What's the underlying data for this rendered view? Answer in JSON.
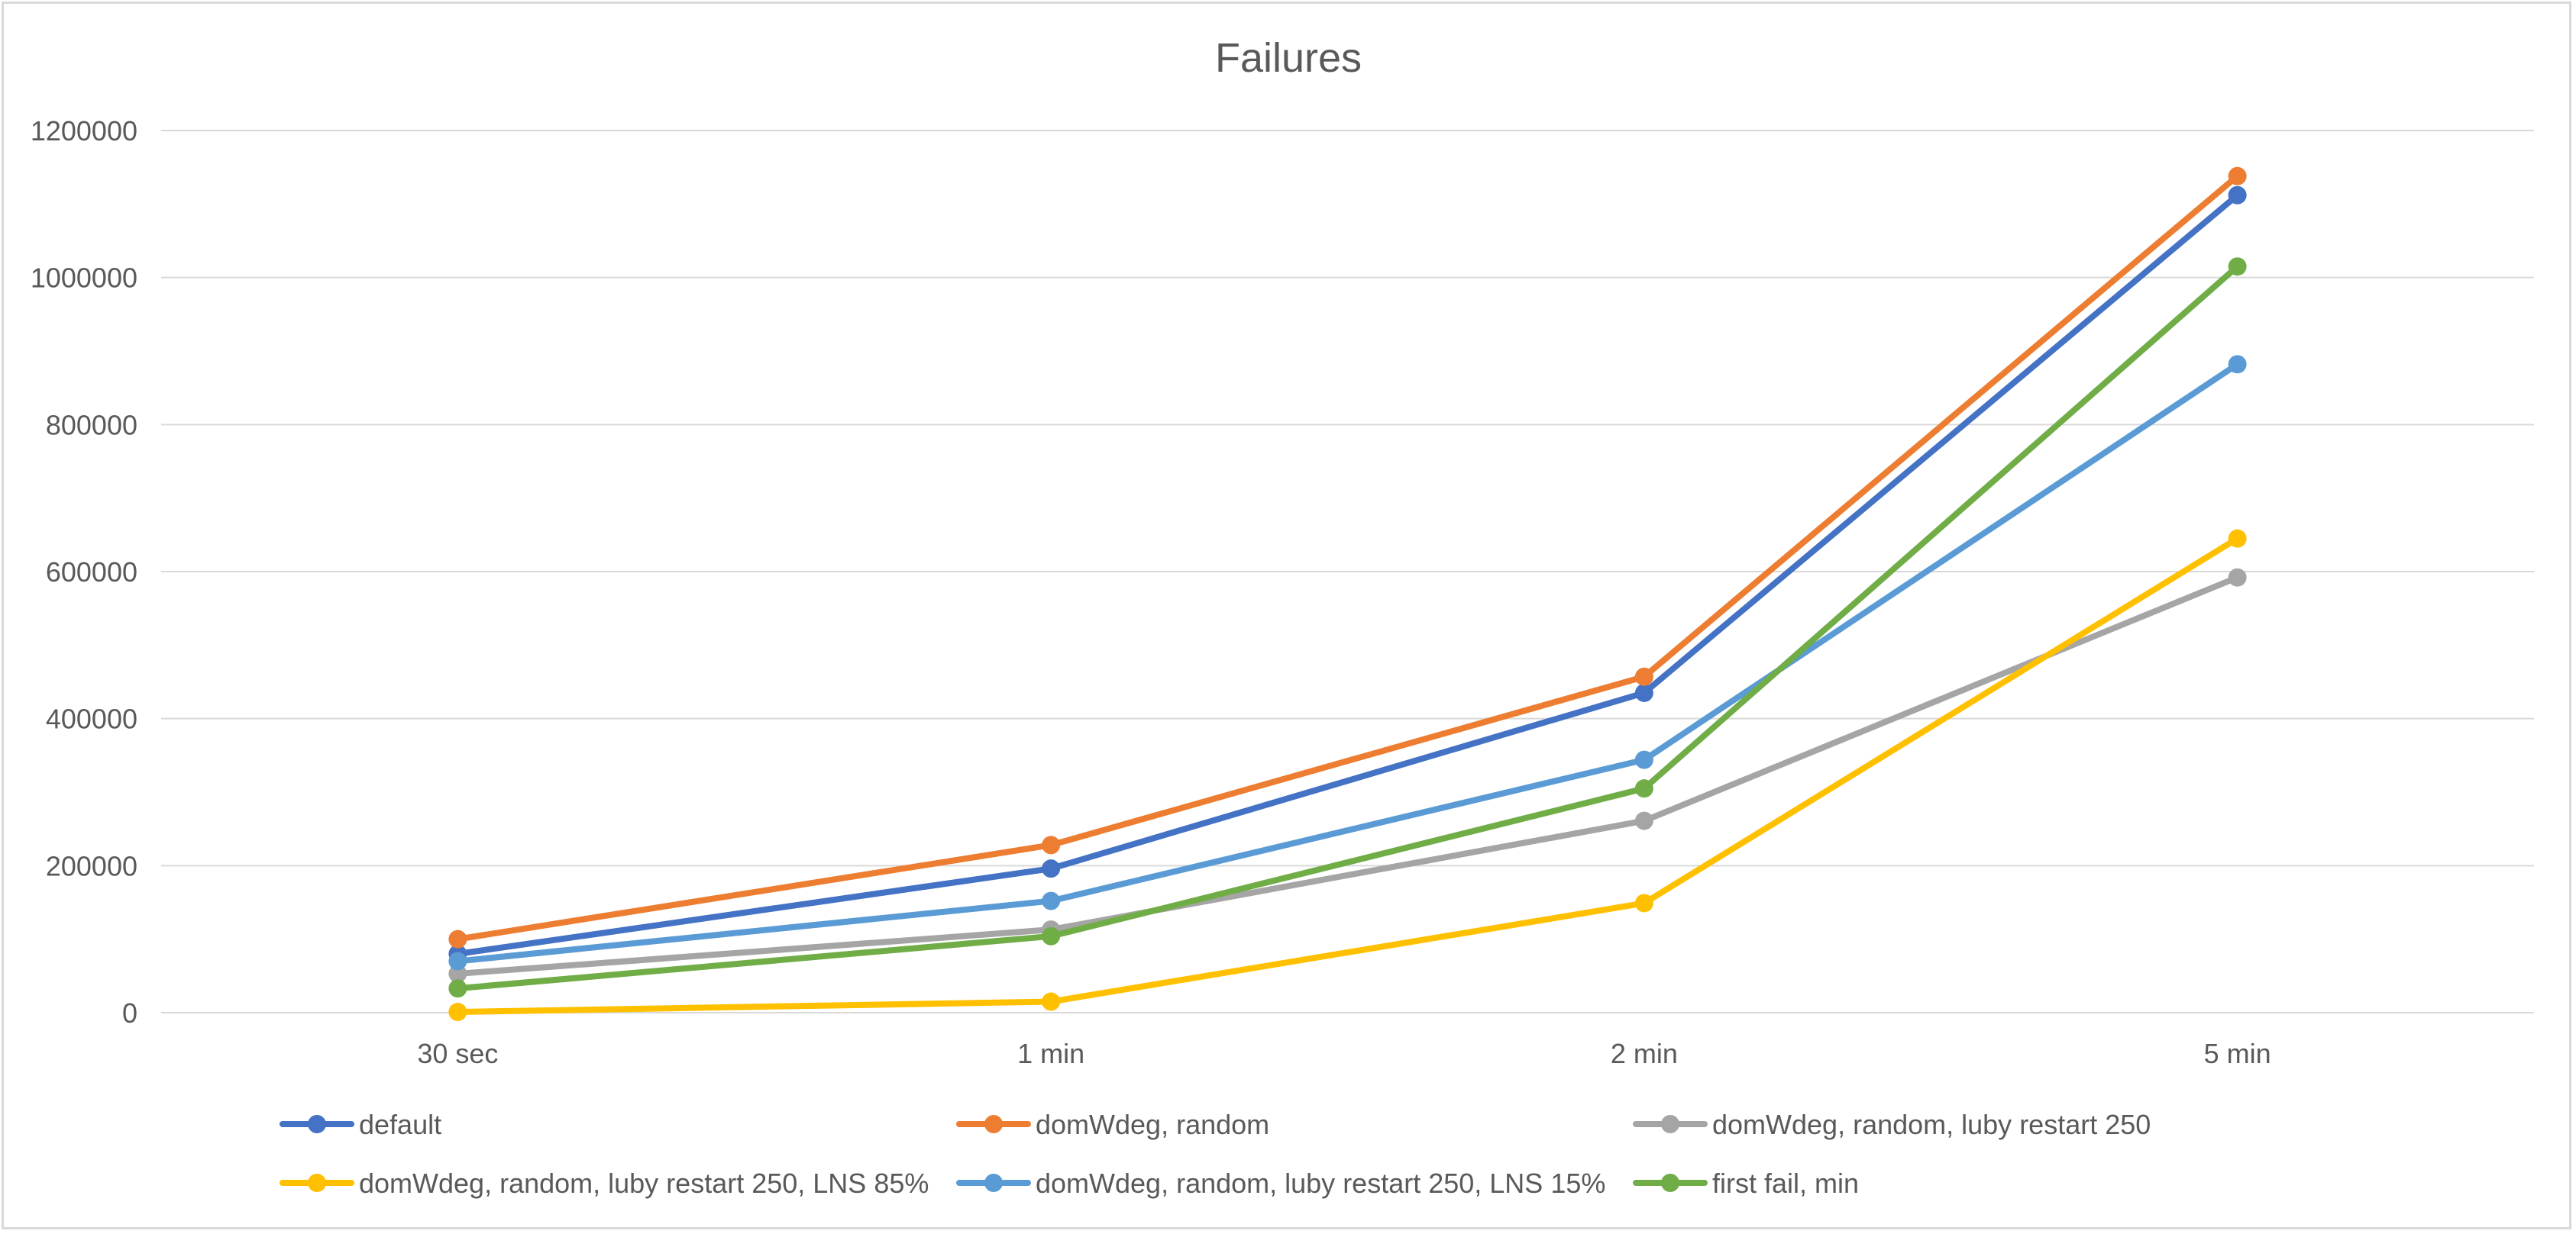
{
  "chart_data": {
    "type": "line",
    "title": "Failures",
    "xlabel": "",
    "ylabel": "",
    "categories": [
      "30 sec",
      "1 min",
      "2 min",
      "5 min"
    ],
    "ylim": [
      0,
      1200000
    ],
    "yticks": [
      0,
      200000,
      400000,
      600000,
      800000,
      1000000,
      1200000
    ],
    "ytick_labels": [
      "0",
      "200000",
      "400000",
      "600000",
      "800000",
      "1000000",
      "1200000"
    ],
    "grid": true,
    "legend_position": "bottom",
    "series": [
      {
        "name": "default",
        "color": "#4472C4",
        "values": [
          80000,
          196000,
          435000,
          1112000
        ]
      },
      {
        "name": "domWdeg, random",
        "color": "#ED7D31",
        "values": [
          100000,
          228000,
          457000,
          1138000
        ]
      },
      {
        "name": "domWdeg, random, luby restart 250",
        "color": "#A5A5A5",
        "values": [
          53000,
          113000,
          261000,
          592000
        ]
      },
      {
        "name": "domWdeg, random, luby restart 250, LNS 85%",
        "color": "#FFC000",
        "values": [
          1000,
          15000,
          149000,
          645000
        ]
      },
      {
        "name": "domWdeg, random, luby restart 250, LNS 15%",
        "color": "#5B9BD5",
        "values": [
          70000,
          152000,
          344000,
          882000
        ]
      },
      {
        "name": "first fail, min",
        "color": "#70AD47",
        "values": [
          33000,
          104000,
          305000,
          1015000
        ]
      }
    ]
  }
}
